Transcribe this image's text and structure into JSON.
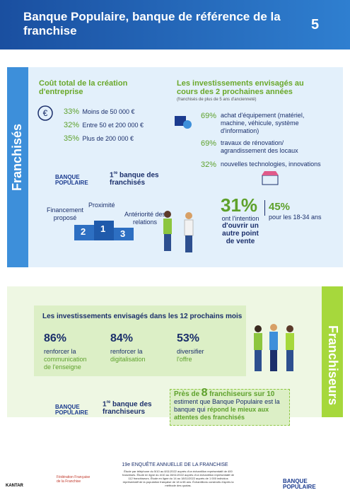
{
  "header": {
    "title": "Banque Populaire, banque de référence de la franchise",
    "page": "5"
  },
  "franchises": {
    "label": "Franchisés",
    "cost": {
      "title": "Coût total de la création d'entreprise",
      "items": [
        {
          "pct": "33%",
          "text": "Moins de 50 000 €"
        },
        {
          "pct": "32%",
          "text": "Entre 50 et 200 000 €"
        },
        {
          "pct": "35%",
          "text": "Plus de 200 000 €"
        }
      ]
    },
    "bank": {
      "logo": "BANQUE POPULAIRE",
      "rank": "1",
      "sup": "re",
      "text": "banque des franchisés"
    },
    "podium": {
      "first": "Proximité",
      "second": "Financement proposé",
      "third": "Antériorité des relations",
      "n1": "1",
      "n2": "2",
      "n3": "3"
    },
    "invest": {
      "title": "Les investissements envisagés au cours des 2 prochaines années",
      "subtitle": "(franchisés de plus de 5 ans d'ancienneté)",
      "items": [
        {
          "pct": "69%",
          "text": "achat d'équipement (matériel, machine, véhicule, système d'information)"
        },
        {
          "pct": "69%",
          "text": "travaux de rénovation/ agrandissement des locaux"
        },
        {
          "pct": "32%",
          "text": "nouvelles technologies, innovations"
        }
      ]
    },
    "outlet": {
      "pct": "31%",
      "text1": "ont l'intention",
      "text2": "d'ouvrir un autre point de vente",
      "young_pct": "45%",
      "young_text": "pour les 18-34 ans"
    }
  },
  "franchiseurs": {
    "label": "Franchiseurs",
    "title": "Les investissements envisagés dans les 12 prochains mois",
    "items": [
      {
        "pct": "86%",
        "text1": "renforcer la",
        "text2": "communication de l'enseigne"
      },
      {
        "pct": "84%",
        "text1": "renforcer la",
        "text2": "digitalisation"
      },
      {
        "pct": "53%",
        "text1": "diversifier",
        "text2": "l'offre"
      }
    ],
    "bank": {
      "logo": "BANQUE POPULAIRE",
      "rank": "1",
      "sup": "re",
      "text": "banque des franchiseurs"
    },
    "quote": {
      "pre": "Près de",
      "num": "8",
      "post": "franchiseurs sur 10",
      "line2": "estiment que Banque Populaire est la banque qui",
      "strong": "répond le mieux aux attentes des franchisés"
    }
  },
  "footer": {
    "title": "19e ENQUÊTE ANNUELLE DE LA FRANCHISE",
    "note": "Étude par téléphone du 5/10 au 8/11/2022 auprès d'un échantillon représentatif de 400 franchisés. Étude en ligne du 4/10 au 28/11/2022 auprès d'un échantillon représentatif de 112 franchiseurs. Étude en ligne du 14 au 18/11/2022 auprès de 1 000 individus représentatif de la population française de 18 à 65 ans. Échantillons construits d'après la méthode des quotas.",
    "kantar": "KANTAR",
    "fff": "Fédération Française de la Franchise",
    "logo": "BANQUE POPULAIRE"
  }
}
